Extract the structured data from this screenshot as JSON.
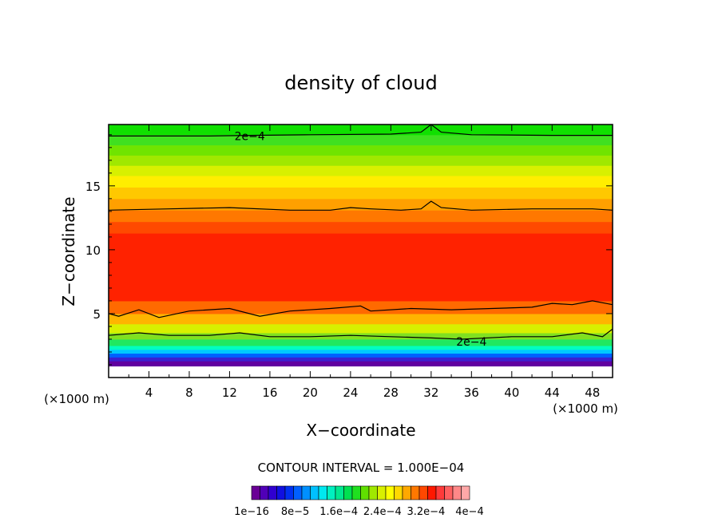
{
  "chart_data": {
    "type": "heatmap",
    "title": "density of cloud",
    "xlabel": "X−coordinate",
    "ylabel": "Z−coordinate",
    "x_unit": "(×1000 m)",
    "y_unit": "(×1000 m)",
    "xlim": [
      0,
      50
    ],
    "ylim": [
      0,
      19.8
    ],
    "x_ticks": [
      4,
      8,
      12,
      16,
      20,
      24,
      28,
      32,
      36,
      40,
      44,
      48
    ],
    "y_ticks": [
      5,
      10,
      15
    ],
    "contour_interval_text": "CONTOUR INTERVAL = 1.000E−04",
    "contour_labels": [
      {
        "text": "2e−4",
        "x": 14,
        "z": 18.9
      },
      {
        "text": "2e−4",
        "x": 36,
        "z": 2.8
      }
    ],
    "contour_lines": [
      {
        "level": 0.0002,
        "points": [
          [
            0,
            18.9
          ],
          [
            10,
            18.9
          ],
          [
            14,
            18.95
          ],
          [
            20,
            19.0
          ],
          [
            28,
            19.05
          ],
          [
            31,
            19.2
          ],
          [
            32,
            19.8
          ],
          [
            33,
            19.2
          ],
          [
            36,
            19.0
          ],
          [
            44,
            18.95
          ],
          [
            50,
            18.95
          ]
        ]
      },
      {
        "level": 0.0003,
        "points": [
          [
            0,
            13.1
          ],
          [
            6,
            13.2
          ],
          [
            12,
            13.3
          ],
          [
            18,
            13.1
          ],
          [
            22,
            13.1
          ],
          [
            24,
            13.3
          ],
          [
            26,
            13.2
          ],
          [
            29,
            13.1
          ],
          [
            31,
            13.2
          ],
          [
            32,
            13.8
          ],
          [
            33,
            13.3
          ],
          [
            36,
            13.1
          ],
          [
            42,
            13.2
          ],
          [
            48,
            13.2
          ],
          [
            50,
            13.1
          ]
        ]
      },
      {
        "level": 0.0003,
        "points": [
          [
            0,
            5.0
          ],
          [
            1,
            4.8
          ],
          [
            3,
            5.3
          ],
          [
            5,
            4.7
          ],
          [
            8,
            5.2
          ],
          [
            12,
            5.4
          ],
          [
            15,
            4.8
          ],
          [
            18,
            5.2
          ],
          [
            22,
            5.4
          ],
          [
            25,
            5.6
          ],
          [
            26,
            5.2
          ],
          [
            30,
            5.4
          ],
          [
            34,
            5.3
          ],
          [
            38,
            5.4
          ],
          [
            42,
            5.5
          ],
          [
            44,
            5.8
          ],
          [
            46,
            5.7
          ],
          [
            48,
            6.0
          ],
          [
            50,
            5.7
          ]
        ]
      },
      {
        "level": 0.0002,
        "points": [
          [
            0,
            3.3
          ],
          [
            3,
            3.5
          ],
          [
            6,
            3.3
          ],
          [
            10,
            3.3
          ],
          [
            13,
            3.5
          ],
          [
            16,
            3.2
          ],
          [
            20,
            3.2
          ],
          [
            24,
            3.3
          ],
          [
            28,
            3.2
          ],
          [
            32,
            3.1
          ],
          [
            35,
            3.0
          ],
          [
            40,
            3.2
          ],
          [
            44,
            3.2
          ],
          [
            47,
            3.5
          ],
          [
            49,
            3.2
          ],
          [
            50,
            3.8
          ]
        ]
      }
    ],
    "bands": [
      {
        "z0": 0.0,
        "z1": 0.9,
        "color": "#ffffff"
      },
      {
        "z0": 0.9,
        "z1": 1.3,
        "color": "#6000a0"
      },
      {
        "z0": 1.3,
        "z1": 1.6,
        "color": "#3a20d0"
      },
      {
        "z0": 1.6,
        "z1": 1.9,
        "color": "#0060ff"
      },
      {
        "z0": 1.9,
        "z1": 2.2,
        "color": "#00c8ff"
      },
      {
        "z0": 2.2,
        "z1": 2.5,
        "color": "#00ffc0"
      },
      {
        "z0": 2.5,
        "z1": 3.0,
        "color": "#20e860"
      },
      {
        "z0": 3.0,
        "z1": 3.5,
        "color": "#80e020"
      },
      {
        "z0": 3.5,
        "z1": 4.2,
        "color": "#d8f000"
      },
      {
        "z0": 4.2,
        "z1": 5.0,
        "color": "#ffb400"
      },
      {
        "z0": 5.0,
        "z1": 6.0,
        "color": "#ff6a00"
      },
      {
        "z0": 6.0,
        "z1": 11.3,
        "color": "#ff2200"
      },
      {
        "z0": 11.3,
        "z1": 12.2,
        "color": "#ff4a00"
      },
      {
        "z0": 12.2,
        "z1": 13.1,
        "color": "#ff7800"
      },
      {
        "z0": 13.1,
        "z1": 14.0,
        "color": "#ffa000"
      },
      {
        "z0": 14.0,
        "z1": 14.9,
        "color": "#ffc800"
      },
      {
        "z0": 14.9,
        "z1": 15.8,
        "color": "#ffee00"
      },
      {
        "z0": 15.8,
        "z1": 16.6,
        "color": "#d8f000"
      },
      {
        "z0": 16.6,
        "z1": 17.4,
        "color": "#a0e800"
      },
      {
        "z0": 17.4,
        "z1": 18.2,
        "color": "#70e400"
      },
      {
        "z0": 18.2,
        "z1": 19.0,
        "color": "#40e020"
      },
      {
        "z0": 19.0,
        "z1": 19.8,
        "color": "#10e000"
      }
    ],
    "colorbar": {
      "colors": [
        "#6a0096",
        "#5000b8",
        "#3000d0",
        "#1010e0",
        "#0030f0",
        "#0060ff",
        "#0090ff",
        "#00c0ff",
        "#00e8f0",
        "#00f0c0",
        "#00e890",
        "#00e050",
        "#20e020",
        "#60e000",
        "#a0e800",
        "#d8f000",
        "#ffff00",
        "#ffd800",
        "#ffa800",
        "#ff7800",
        "#ff4800",
        "#ff1800",
        "#ff3a3a",
        "#ff6060",
        "#ff8888",
        "#ffa8a8"
      ],
      "tick_labels": [
        "1e−16",
        "8e−5",
        "1.6e−4",
        "2.4e−4",
        "3.2e−4",
        "4e−4"
      ]
    }
  }
}
